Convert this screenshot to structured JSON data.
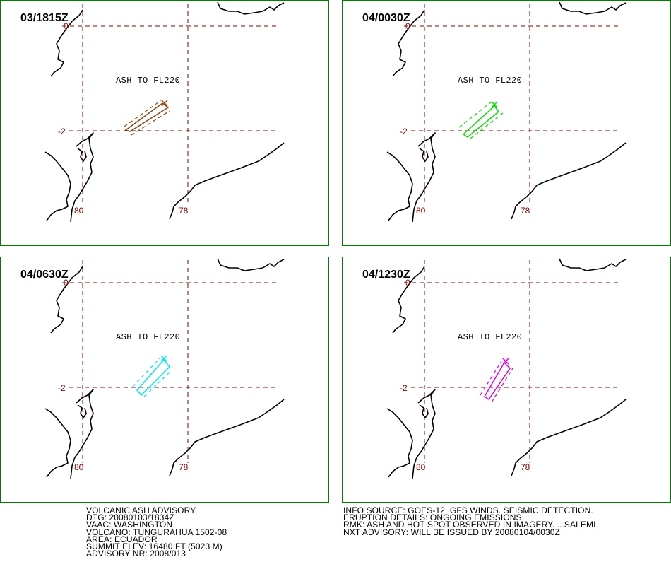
{
  "colors": {
    "frame": "#008000",
    "gridline": "#8b0000",
    "coastline": "#000000",
    "tick_label": "#8b0000"
  },
  "grid_labels": {
    "lat_top": "0",
    "lat_mid": "-2",
    "lon_left": "80",
    "lon_right": "78"
  },
  "panels": [
    {
      "time": "03/1815Z",
      "ash_label": "ASH TO FL220",
      "ash_color": "#8b4513"
    },
    {
      "time": "04/0030Z",
      "ash_label": "ASH TO FL220",
      "ash_color": "#00e000"
    },
    {
      "time": "04/0630Z",
      "ash_label": "ASH TO FL220",
      "ash_color": "#00e5ee"
    },
    {
      "time": "04/1230Z",
      "ash_label": "ASH TO FL220",
      "ash_color": "#e000e0"
    }
  ],
  "advisory_left": [
    "VOLCANIC ASH ADVISORY",
    "DTG: 20080103/1834Z",
    "VAAC: WASHINGTON",
    "VOLCANO: TUNGURAHUA 1502-08",
    "AREA: ECUADOR",
    "SUMMIT ELEV: 16480 FT (5023 M)",
    "ADVISORY NR: 2008/013"
  ],
  "advisory_right": [
    "INFO SOURCE: GOES-12. GFS WINDS. SEISMIC DETECTION.",
    "ERUPTION DETAILS: ONGOING EMISSIONS",
    "RMK: ASH AND HOT SPOT OBSERVED IN IMAGERY. ...SALEMI",
    "NXT ADVISORY: WILL BE ISSUED BY 20080104/0030Z"
  ]
}
